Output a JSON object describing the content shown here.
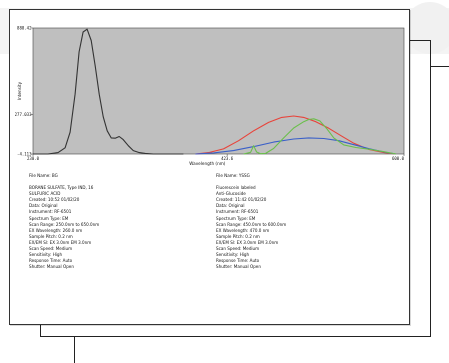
{
  "chart_data": {
    "type": "line",
    "xlabel": "Wavelength (nm)",
    "ylabel": "Intensity",
    "xlim": [
      230.0,
      600.0
    ],
    "ylim": [
      -4.113,
      888.42
    ],
    "x_ticks": [
      "230.0",
      "423.6",
      "600.0"
    ],
    "y_ticks": [
      "888.42",
      "277.033",
      "-4.113"
    ],
    "grid": false,
    "background": "#bfbfbf",
    "series": [
      {
        "color": "#333333",
        "x": [
          230,
          245,
          255,
          262,
          267,
          272,
          276,
          280,
          284,
          288,
          292,
          296,
          300,
          304,
          308,
          312,
          316,
          320,
          325,
          330,
          336,
          342,
          350,
          360,
          380
        ],
        "y": [
          -4,
          -4,
          6,
          40,
          150,
          420,
          720,
          860,
          880,
          800,
          620,
          420,
          260,
          160,
          110,
          108,
          120,
          98,
          55,
          20,
          6,
          0,
          -4,
          -4,
          -4
        ]
      },
      {
        "color": "#e8433a",
        "x": [
          392,
          405,
          420,
          435,
          450,
          465,
          478,
          490,
          500,
          512,
          525,
          538,
          550,
          565,
          580,
          592
        ],
        "y": [
          -4,
          6,
          32,
          90,
          160,
          220,
          255,
          265,
          255,
          225,
          178,
          122,
          72,
          28,
          6,
          -4
        ]
      },
      {
        "color": "#3a5fc8",
        "x": [
          392,
          410,
          430,
          450,
          470,
          490,
          505,
          520,
          535,
          550,
          565,
          580,
          592
        ],
        "y": [
          -4,
          4,
          20,
          48,
          80,
          102,
          110,
          106,
          90,
          62,
          34,
          10,
          -4
        ]
      },
      {
        "color": "#6abf4b",
        "x": [
          440,
          447,
          450,
          453,
          457,
          462,
          470,
          480,
          490,
          500,
          505,
          510,
          516,
          523,
          530,
          540,
          552,
          565,
          580,
          592
        ],
        "y": [
          -4,
          8,
          55,
          10,
          -2,
          0,
          35,
          110,
          180,
          225,
          240,
          245,
          230,
          175,
          110,
          60,
          42,
          30,
          12,
          -4
        ]
      }
    ]
  },
  "left_block": {
    "file_name": "File Name:  BG",
    "lines": [
      "BORANE SULFATE, Type IND, 16",
      "SULFURIC ACID",
      "Created:   10:52  01/02/20",
      "Data:    Original",
      "Instrument:  RF-6501",
      "Spectrum Type: EM",
      "Scan Range:  250.0nm to 650.0nm",
      "EX Wavelength: 260.0 nm",
      "Sample Pitch: 0.2 nm",
      "EX/EM Sl:  EX 3.0nm  EM 3.0nm",
      "Scan Speed:  Medium",
      "Sensitivity: High",
      "Response Time: Auto",
      "Shutter:   Manual Open"
    ]
  },
  "right_block": {
    "file_name": "File Name:  YSSG",
    "lines": [
      "Fluorescein labeled",
      "Anti-Glucoside",
      "Created:   11:42  01/02/20",
      "Data:    Original",
      "Instrument:  RF-6501",
      "Spectrum Type: EM",
      "Scan Range:  450.0nm to 600.0nm",
      "EX Wavelength: 470.0 nm",
      "Sample Pitch: 0.2 nm",
      "EX/EM Sl:  EX 3.0nm  EM 3.0nm",
      "Scan Speed:  Medium",
      "Sensitivity: High",
      "Response Time: Auto",
      "Shutter:   Manual Open"
    ]
  }
}
